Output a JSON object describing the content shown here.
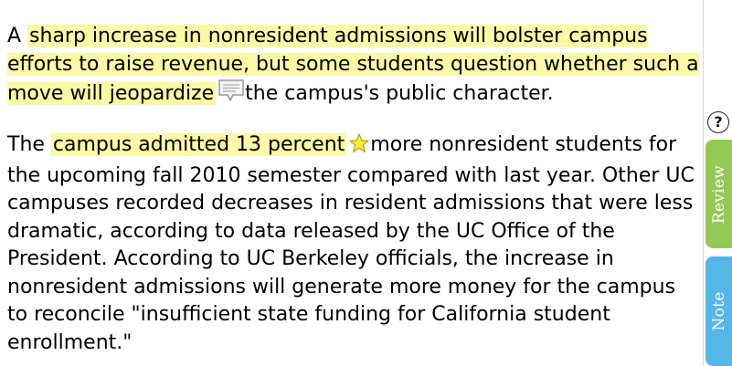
{
  "paragraph1": {
    "lead": "A ",
    "highlight": "sharp increase in nonresident admissions will bolster campus efforts to raise revenue, but some students question whether such a move will jeopardize",
    "icon": "comment-bubble-icon",
    "rest": "the campus's public character."
  },
  "paragraph2": {
    "lead": "The ",
    "highlight": "campus admitted 13 percent",
    "icon": "star-icon",
    "rest": "more nonresident students for the upcoming fall 2010 semester compared with last year. Other UC campuses recorded decreases in resident admissions that were less dramatic, according to data released by the UC Office of the President. According to UC Berkeley officials, the increase in nonresident admissions will generate more money for the campus to reconcile \"insufficient state funding for California student enrollment.\""
  },
  "sidebar": {
    "help_label": "?",
    "review_tab": "Review",
    "note_tab": "Note"
  },
  "colors": {
    "highlight": "#fbf8a6",
    "review_tab": "#95c955",
    "note_tab": "#55b7e8"
  }
}
